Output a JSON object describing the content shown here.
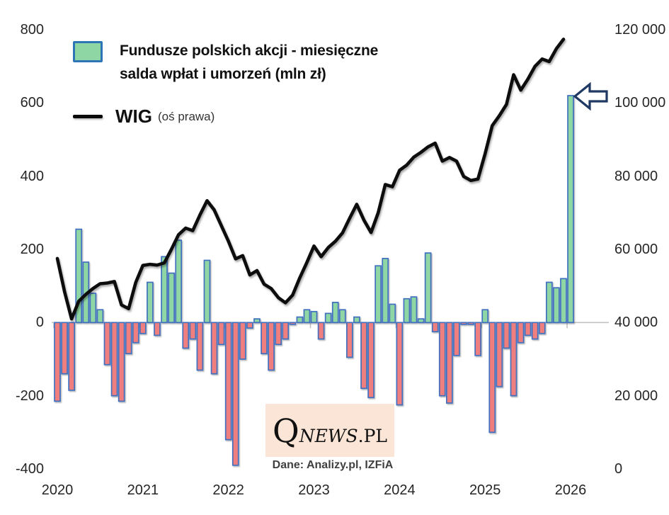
{
  "legend": {
    "bar_label_line1": "Fundusze polskich akcji - miesięczne",
    "bar_label_line2": "salda wpłat i umorzeń (mln zł)",
    "line_label": "WIG",
    "line_sublabel": "(oś prawa)"
  },
  "watermark": {
    "q": "Q",
    "news": "NEWS",
    "pl": ".PL",
    "source": "Dane: Analizy.pl, IZFiA"
  },
  "colors": {
    "bar_positive_fill": "#8ed6a4",
    "bar_negative_fill": "#ef7e7e",
    "bar_border": "#3f6fbf",
    "wig_line": "#0a0a0a",
    "zero_axis": "#c3c3c3",
    "arrow_outline": "#1f3864",
    "arrow_fill": "#ffffff",
    "watermark_bg": "#fbe5d6"
  },
  "chart_data": {
    "type": "combo_bar_line",
    "bar_series": {
      "name": "Fundusze polskich akcji - miesięczne salda wpłat i umorzeń (mln zł)",
      "axis": "left",
      "unit": "mln zł",
      "start": "2020-01",
      "monthly_by_year": {
        "2020": [
          -215,
          -140,
          -185,
          255,
          165,
          80,
          35,
          -115,
          -200,
          -215,
          -85,
          -55
        ],
        "2021": [
          -30,
          110,
          -35,
          180,
          135,
          225,
          -70,
          -45,
          -130,
          170,
          -140,
          -60
        ],
        "2022": [
          -320,
          -390,
          -100,
          -15,
          10,
          -85,
          -130,
          -60,
          -45,
          -5,
          15,
          35
        ],
        "2023": [
          30,
          -45,
          25,
          55,
          35,
          -95,
          15,
          -180,
          -205,
          155,
          175,
          50
        ],
        "2024": [
          -225,
          65,
          70,
          10,
          190,
          -25,
          -200,
          -220,
          -90,
          -5,
          -5,
          -90
        ],
        "2025": [
          35,
          -300,
          -175,
          -70,
          -200,
          -55,
          -35,
          -45,
          -30,
          110,
          95,
          120
        ],
        "2026": [
          620
        ]
      }
    },
    "line_series": {
      "name": "WIG",
      "axis": "right",
      "start": "2020-01",
      "monthly_by_year": {
        "2020": [
          57500,
          48500,
          41000,
          45800,
          47700,
          49300,
          50600,
          50800,
          51200,
          44800,
          43800,
          51000
        ],
        "2021": [
          55600,
          55900,
          55700,
          56300,
          60000,
          64000,
          65800,
          65100,
          69400,
          73300,
          70800,
          66500
        ],
        "2022": [
          62200,
          57400,
          58300,
          53000,
          54200,
          50500,
          49300,
          46800,
          45400,
          47500,
          52200,
          56400
        ],
        "2023": [
          60900,
          58000,
          60500,
          62200,
          64500,
          68500,
          72300,
          68000,
          64600,
          70000,
          77700,
          77100
        ],
        "2024": [
          81600,
          83000,
          85200,
          86500,
          88000,
          89000,
          84100,
          85100,
          84100,
          79900,
          78800,
          79200
        ],
        "2025": [
          86100,
          93800,
          96500,
          99600,
          107700,
          103500,
          106500,
          110000,
          112000,
          111300,
          114800,
          117400
        ]
      }
    },
    "left_axis": {
      "range": [
        -400,
        800
      ],
      "ticks": [
        "800",
        "600",
        "400",
        "200",
        "0",
        "-200",
        "-400"
      ]
    },
    "right_axis": {
      "range": [
        0,
        120000
      ],
      "ticks": [
        "120 000",
        "100 000",
        "80 000",
        "60 000",
        "40 000",
        "20 000",
        "0"
      ]
    },
    "x_axis": {
      "ticks": [
        "2020",
        "2021",
        "2022",
        "2023",
        "2024",
        "2025",
        "2026"
      ]
    },
    "grid": "off",
    "legend_position": "top-left",
    "annotation": {
      "shape": "left-block-arrow",
      "meaning": "highlights last bar, ~620 mln zł inflow"
    }
  }
}
